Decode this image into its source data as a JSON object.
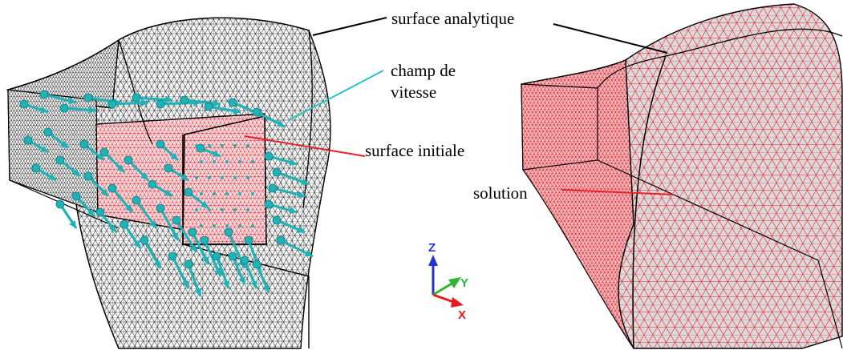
{
  "labels": {
    "surface_analytique": "surface analytique",
    "champ_line1": "champ de",
    "champ_line2": "vitesse",
    "surface_initiale": "surface initiale",
    "solution": "solution"
  },
  "axes": {
    "z": "Z",
    "y": "Y",
    "x": "X"
  },
  "colors": {
    "mesh_black": "#000000",
    "mesh_red": "#e8202a",
    "velocity_arrows": "#1fb3b8",
    "leader_analytique": "#000000",
    "leader_champ": "#27c4c7",
    "leader_initiale": "#e8202a",
    "leader_solution": "#e8202a",
    "axis_z": "#2434c8",
    "axis_y": "#2fb52f",
    "axis_x": "#e81c1c",
    "solution_fill": "#dcd9da"
  }
}
